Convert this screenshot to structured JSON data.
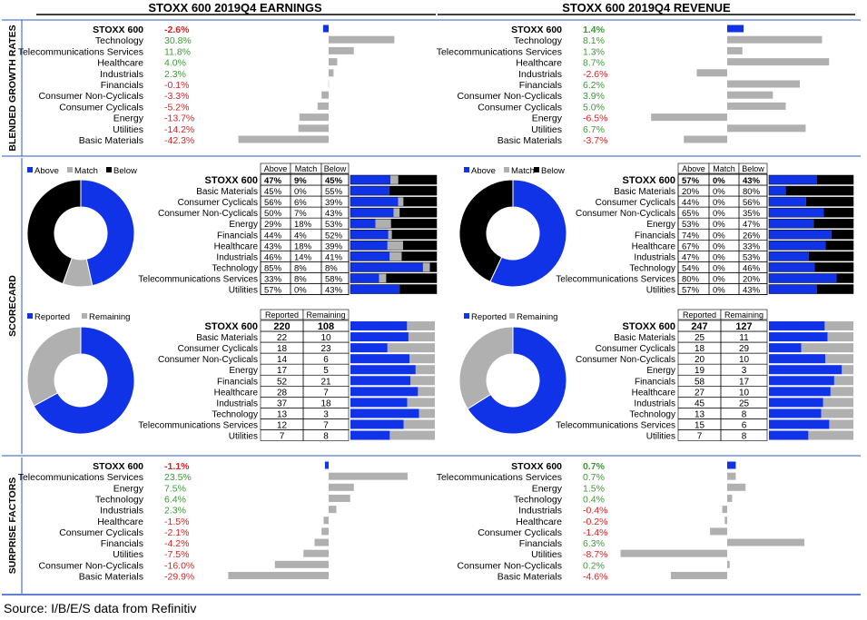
{
  "colors": {
    "blue": "#1033e8",
    "gray": "#b0b0b0",
    "black": "#000000",
    "pos": "#3c9a34",
    "neg": "#e02020",
    "rule": "#2f55c8"
  },
  "headers": {
    "earnings": "STOXX 600 2019Q4 EARNINGS",
    "revenue": "STOXX 600 2019Q4 REVENUE"
  },
  "section_labels": {
    "growth": "BLENDED GROWTH RATES",
    "scorecard": "SCORECARD",
    "surprise": "SURPRISE FACTORS"
  },
  "legend": {
    "above": "Above",
    "match": "Match",
    "below": "Below",
    "reported": "Reported",
    "remaining": "Remaining"
  },
  "table_headers": {
    "above": "Above",
    "match": "Match",
    "below": "Below",
    "reported": "Reported",
    "remaining": "Remaining"
  },
  "footer": {
    "source": "Source: I/B/E/S data from Refinitiv"
  },
  "chart_data": [
    {
      "id": "earnings_growth",
      "type": "bar",
      "orientation": "horizontal",
      "categories": [
        "STOXX 600",
        "Technology",
        "Telecommunications Services",
        "Healthcare",
        "Industrials",
        "Financials",
        "Consumer Non-Cyclicals",
        "Consumer Cyclicals",
        "Energy",
        "Utilities",
        "Basic Materials"
      ],
      "values": [
        -2.6,
        30.8,
        11.8,
        4.0,
        2.3,
        -0.1,
        -3.3,
        -5.2,
        -13.7,
        -14.2,
        -42.3
      ],
      "labels": [
        "-2.6%",
        "30.8%",
        "11.8%",
        "4.0%",
        "2.3%",
        "-0.1%",
        "-3.3%",
        "-5.2%",
        "-13.7%",
        "-14.2%",
        "-42.3%"
      ]
    },
    {
      "id": "revenue_growth",
      "type": "bar",
      "orientation": "horizontal",
      "categories": [
        "STOXX 600",
        "Technology",
        "Telecommunications Services",
        "Healthcare",
        "Industrials",
        "Financials",
        "Consumer Non-Cyclicals",
        "Consumer Cyclicals",
        "Energy",
        "Utilities",
        "Basic Materials"
      ],
      "values": [
        1.4,
        8.1,
        1.3,
        8.7,
        -2.6,
        6.2,
        3.9,
        5.0,
        -6.5,
        6.7,
        -3.7
      ],
      "labels": [
        "1.4%",
        "8.1%",
        "1.3%",
        "8.7%",
        "-2.6%",
        "6.2%",
        "3.9%",
        "5.0%",
        "-6.5%",
        "6.7%",
        "-3.7%"
      ]
    },
    {
      "id": "earnings_scorecard",
      "type": "table",
      "pie": [
        47,
        9,
        45
      ],
      "categories": [
        "STOXX 600",
        "Basic Materials",
        "Consumer Cyclicals",
        "Consumer Non-Cyclicals",
        "Energy",
        "Financials",
        "Healthcare",
        "Industrials",
        "Technology",
        "Telecommunications Services",
        "Utilities"
      ],
      "above": [
        47,
        45,
        56,
        50,
        29,
        44,
        43,
        46,
        85,
        33,
        57
      ],
      "match": [
        9,
        0,
        6,
        7,
        18,
        4,
        18,
        14,
        8,
        8,
        0
      ],
      "below": [
        45,
        55,
        39,
        43,
        53,
        52,
        39,
        41,
        8,
        58,
        43
      ]
    },
    {
      "id": "revenue_scorecard",
      "type": "table",
      "pie": [
        57,
        0,
        43
      ],
      "categories": [
        "STOXX 600",
        "Basic Materials",
        "Consumer Cyclicals",
        "Consumer Non-Cyclicals",
        "Energy",
        "Financials",
        "Healthcare",
        "Industrials",
        "Technology",
        "Telecommunications Services",
        "Utilities"
      ],
      "above": [
        57,
        20,
        44,
        65,
        53,
        74,
        67,
        47,
        54,
        80,
        57
      ],
      "match": [
        0,
        0,
        0,
        0,
        0,
        0,
        0,
        0,
        0,
        0,
        0
      ],
      "below": [
        43,
        80,
        56,
        35,
        47,
        26,
        33,
        53,
        46,
        20,
        43
      ]
    },
    {
      "id": "earnings_reported",
      "type": "table",
      "categories": [
        "STOXX 600",
        "Basic Materials",
        "Consumer Cyclicals",
        "Consumer Non-Cyclicals",
        "Energy",
        "Financials",
        "Healthcare",
        "Industrials",
        "Technology",
        "Telecommunications Services",
        "Utilities"
      ],
      "reported": [
        220,
        22,
        18,
        14,
        17,
        52,
        28,
        37,
        13,
        12,
        7
      ],
      "remaining": [
        108,
        10,
        23,
        6,
        5,
        21,
        7,
        18,
        3,
        7,
        8
      ]
    },
    {
      "id": "revenue_reported",
      "type": "table",
      "categories": [
        "STOXX 600",
        "Basic Materials",
        "Consumer Cyclicals",
        "Consumer Non-Cyclicals",
        "Energy",
        "Financials",
        "Healthcare",
        "Industrials",
        "Technology",
        "Telecommunications Services",
        "Utilities"
      ],
      "reported": [
        247,
        25,
        18,
        20,
        19,
        58,
        27,
        45,
        13,
        15,
        7
      ],
      "remaining": [
        127,
        11,
        29,
        10,
        3,
        17,
        10,
        25,
        8,
        6,
        8
      ]
    },
    {
      "id": "earnings_surprise",
      "type": "bar",
      "orientation": "horizontal",
      "categories": [
        "STOXX 600",
        "Telecommunications Services",
        "Energy",
        "Technology",
        "Industrials",
        "Healthcare",
        "Consumer Cyclicals",
        "Financials",
        "Utilities",
        "Consumer Non-Cyclicals",
        "Basic Materials"
      ],
      "values": [
        -1.1,
        23.5,
        7.5,
        6.4,
        2.3,
        -1.5,
        -2.1,
        -4.2,
        -7.5,
        -16.0,
        -29.9
      ],
      "labels": [
        "-1.1%",
        "23.5%",
        "7.5%",
        "6.4%",
        "2.3%",
        "-1.5%",
        "-2.1%",
        "-4.2%",
        "-7.5%",
        "-16.0%",
        "-29.9%"
      ]
    },
    {
      "id": "revenue_surprise",
      "type": "bar",
      "orientation": "horizontal",
      "categories": [
        "STOXX 600",
        "Telecommunications Services",
        "Energy",
        "Technology",
        "Industrials",
        "Healthcare",
        "Consumer Cyclicals",
        "Financials",
        "Utilities",
        "Consumer Non-Cyclicals",
        "Basic Materials"
      ],
      "values": [
        0.7,
        0.7,
        1.5,
        0.4,
        -0.4,
        -0.2,
        -1.4,
        6.3,
        -8.7,
        0.2,
        -4.6
      ],
      "labels": [
        "0.7%",
        "0.7%",
        "1.5%",
        "0.4%",
        "-0.4%",
        "-0.2%",
        "-1.4%",
        "6.3%",
        "-8.7%",
        "0.2%",
        "-4.6%"
      ]
    }
  ]
}
